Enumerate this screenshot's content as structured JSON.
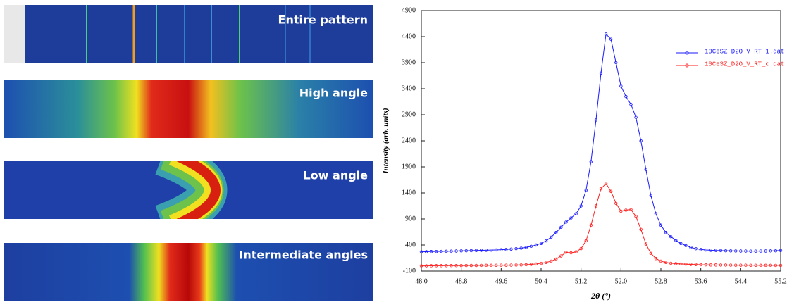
{
  "panels": [
    {
      "label": "Entire pattern"
    },
    {
      "label": "High angle"
    },
    {
      "label": "Low angle"
    },
    {
      "label": "Intermediate angles"
    }
  ],
  "chart_data": {
    "type": "line",
    "xlabel": "2θ (°)",
    "ylabel": "Intensity (arb. units)",
    "x": [
      48.0,
      48.1,
      48.2,
      48.3,
      48.4,
      48.5,
      48.6,
      48.7,
      48.8,
      48.9,
      49.0,
      49.1,
      49.2,
      49.3,
      49.4,
      49.5,
      49.6,
      49.7,
      49.8,
      49.9,
      50.0,
      50.1,
      50.2,
      50.3,
      50.4,
      50.5,
      50.6,
      50.7,
      50.8,
      50.9,
      51.0,
      51.1,
      51.2,
      51.3,
      51.4,
      51.5,
      51.6,
      51.7,
      51.8,
      51.9,
      52.0,
      52.1,
      52.2,
      52.3,
      52.4,
      52.5,
      52.6,
      52.7,
      52.8,
      52.9,
      53.0,
      53.1,
      53.2,
      53.3,
      53.4,
      53.5,
      53.6,
      53.7,
      53.8,
      53.9,
      54.0,
      54.1,
      54.2,
      54.3,
      54.4,
      54.5,
      54.6,
      54.7,
      54.8,
      54.9,
      55.0,
      55.1,
      55.2
    ],
    "series": [
      {
        "name": "10CeSZ_D2O_V_RT_1.dat",
        "color": "#1a1aff",
        "values": [
          270,
          272,
          275,
          276,
          278,
          280,
          282,
          285,
          288,
          290,
          292,
          295,
          298,
          300,
          303,
          306,
          310,
          315,
          322,
          330,
          340,
          355,
          375,
          400,
          430,
          480,
          550,
          640,
          740,
          840,
          920,
          1000,
          1150,
          1450,
          2000,
          2800,
          3700,
          4450,
          4350,
          3900,
          3450,
          3250,
          3100,
          2850,
          2400,
          1850,
          1350,
          1000,
          780,
          640,
          560,
          490,
          430,
          390,
          355,
          330,
          315,
          305,
          300,
          296,
          293,
          290,
          288,
          286,
          285,
          284,
          283,
          283,
          284,
          285,
          287,
          290,
          295
        ]
      },
      {
        "name": "10CeSZ_D2O_V_RT_c.dat",
        "color": "#ff2020",
        "values": [
          0,
          0,
          2,
          3,
          3,
          4,
          5,
          5,
          6,
          7,
          8,
          8,
          9,
          10,
          10,
          11,
          12,
          13,
          14,
          16,
          18,
          22,
          28,
          36,
          48,
          65,
          90,
          130,
          190,
          260,
          250,
          270,
          330,
          480,
          780,
          1150,
          1480,
          1580,
          1430,
          1200,
          1050,
          1070,
          1080,
          950,
          700,
          420,
          240,
          140,
          90,
          65,
          50,
          42,
          36,
          32,
          28,
          25,
          22,
          20,
          18,
          17,
          16,
          15,
          14,
          13,
          12,
          12,
          11,
          11,
          10,
          10,
          10,
          9,
          9
        ]
      }
    ],
    "xlim": [
      48.0,
      55.2
    ],
    "xticks": [
      {
        "value": 48,
        "label": "48.0"
      },
      48.8,
      49.6,
      50.4,
      {
        "value": 51.2,
        "label": "51.2"
      },
      {
        "value": 52,
        "label": "52.0"
      },
      52.8,
      53.6,
      54.4,
      55.2
    ],
    "ylim": [
      -100,
      4900
    ],
    "yticks": [
      -100,
      400,
      900,
      1400,
      1900,
      2400,
      2900,
      3400,
      3900,
      4400,
      4900
    ],
    "legend": "upper right"
  }
}
